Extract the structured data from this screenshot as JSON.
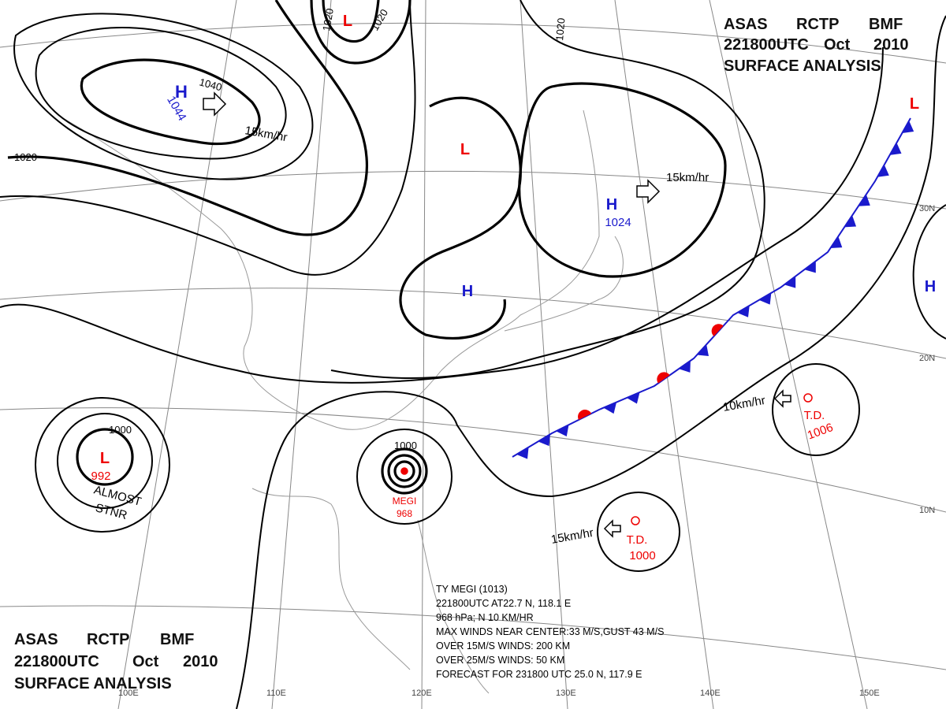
{
  "header": {
    "agency": "ASAS",
    "center": "RCTP",
    "code": "BMF",
    "time": "221800UTC",
    "month": "Oct",
    "year": "2010",
    "title": "SURFACE ANALYSIS"
  },
  "pressure_systems": [
    {
      "symbol": "H",
      "pressure": "1044"
    },
    {
      "symbol": "L"
    },
    {
      "symbol": "L"
    },
    {
      "symbol": "H"
    },
    {
      "symbol": "H",
      "pressure": "1024"
    },
    {
      "symbol": "L"
    },
    {
      "symbol": "H"
    },
    {
      "symbol": "L",
      "pressure": "992",
      "note": [
        "ALMOST",
        "STNR"
      ]
    }
  ],
  "typhoon": {
    "name": "MEGI",
    "pressure": "968"
  },
  "depressions": [
    {
      "label": "T.D.",
      "pressure": "1006"
    },
    {
      "label": "T.D.",
      "pressure": "1000"
    }
  ],
  "motions": [
    "15km/hr",
    "15km/hr",
    "10km/hr",
    "15km/hr"
  ],
  "isobar_labels": [
    "1040",
    "1020",
    "1020",
    "1020",
    "1020",
    "1000",
    "1000"
  ],
  "lat_labels": [
    "30N",
    "20N",
    "10N"
  ],
  "lon_labels": [
    "100E",
    "110E",
    "120E",
    "130E",
    "140E",
    "150E"
  ],
  "typhoon_info": [
    "TY MEGI (1013)",
    "221800UTC  AT22.7 N, 118.1 E",
    "968 hPa; N  10 KM/HR",
    "MAX WINDS NEAR CENTER:33 M/S,GUST 43 M/S",
    "OVER 15M/S WINDS: 200 KM",
    "OVER 25M/S WINDS: 50 KM",
    "FORECAST FOR 231800 UTC 25.0 N, 117.9 E"
  ]
}
